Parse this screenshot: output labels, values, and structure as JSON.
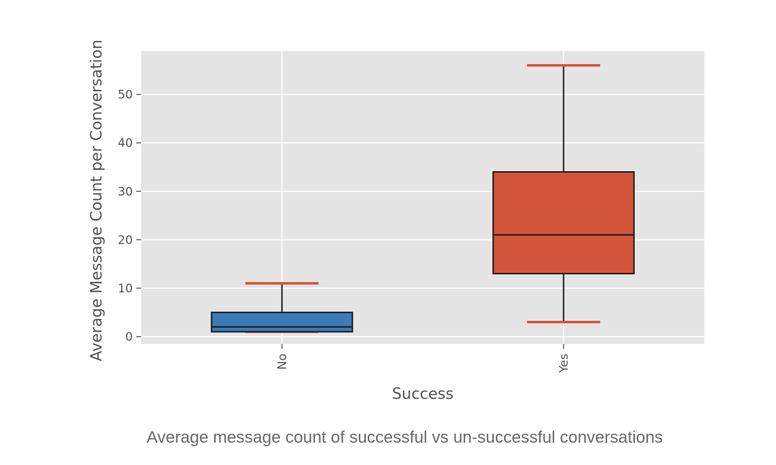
{
  "caption": "Average message count of successful vs un-successful conversations",
  "chart_data": {
    "type": "box",
    "title": "",
    "xlabel": "Success",
    "ylabel": "Average Message Count per Conversation",
    "ylim": [
      -1.5,
      59
    ],
    "yticks": [
      0,
      10,
      20,
      30,
      40,
      50
    ],
    "ytick_labels": [
      "0",
      "10",
      "20",
      "30",
      "40",
      "50"
    ],
    "grid": true,
    "categories": [
      "No",
      "Yes"
    ],
    "boxes": [
      {
        "category": "No",
        "whisker_low": 1,
        "q1": 1,
        "median": 2,
        "q3": 5,
        "whisker_high": 11,
        "color": "#3a7bb8",
        "cap_color": "#d85135"
      },
      {
        "category": "Yes",
        "whisker_low": 3,
        "q1": 13,
        "median": 21,
        "q3": 34,
        "whisker_high": 56,
        "color": "#d2543b",
        "cap_color": "#d85135"
      }
    ],
    "colors": {
      "plot_background": "#e5e5e5",
      "grid": "#ffffff",
      "tick_text": "#555555",
      "label_text": "#555555",
      "box_edge": "#1a1a1a"
    }
  }
}
